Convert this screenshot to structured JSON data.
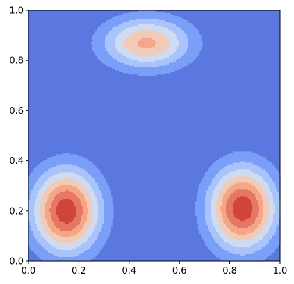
{
  "chart_data": {
    "type": "contour",
    "title": "",
    "xlabel": "",
    "ylabel": "",
    "xlim": [
      0,
      1
    ],
    "ylim": [
      0,
      1
    ],
    "grid": false,
    "colormap": "coolwarm",
    "x_ticks": [
      "0.0",
      "0.2",
      "0.4",
      "0.6",
      "0.8",
      "1.0"
    ],
    "y_ticks": [
      "0.0",
      "0.2",
      "0.4",
      "0.6",
      "0.8",
      "1.0"
    ],
    "level_colors": [
      "#5a78e0",
      "#7b9ff9",
      "#a8c4fb",
      "#cfdbf1",
      "#f2cbb7",
      "#f4a688",
      "#e77762",
      "#cf453c",
      "#b40426"
    ],
    "peaks": [
      {
        "x": 0.15,
        "y": 0.2,
        "sx": 0.13,
        "sy": 0.16,
        "amp": 1.0
      },
      {
        "x": 0.85,
        "y": 0.21,
        "sx": 0.13,
        "sy": 0.16,
        "amp": 1.0
      },
      {
        "x": 0.47,
        "y": 0.87,
        "sx": 0.17,
        "sy": 0.1,
        "amp": 0.68
      }
    ],
    "thresholds": [
      0.13,
      0.26,
      0.39,
      0.52,
      0.65,
      0.78,
      0.91
    ]
  }
}
